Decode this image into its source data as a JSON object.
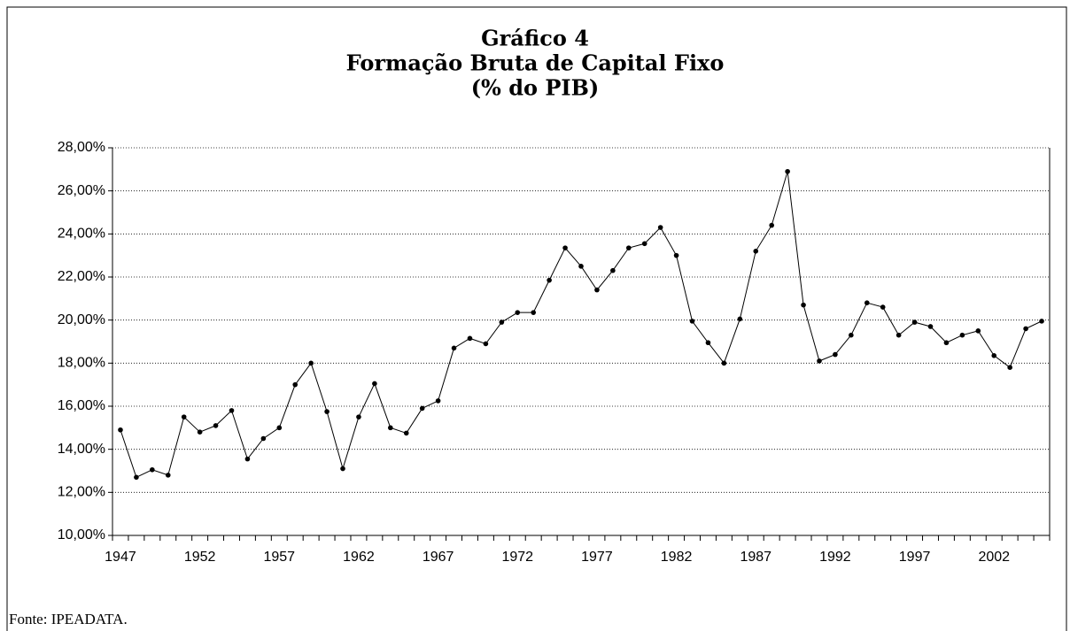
{
  "chart_data": {
    "type": "line",
    "title_lines": [
      "Gráfico 4",
      "Formação Bruta de Capital Fixo",
      "(% do PIB)"
    ],
    "source": "Fonte: IPEADATA.",
    "categories": [
      "1947",
      null,
      null,
      null,
      null,
      "1952",
      null,
      null,
      null,
      null,
      "1957",
      null,
      null,
      null,
      null,
      "1962",
      null,
      null,
      null,
      null,
      "1967",
      null,
      null,
      null,
      null,
      "1972",
      null,
      null,
      null,
      null,
      "1977",
      null,
      null,
      null,
      null,
      "1982",
      null,
      null,
      null,
      null,
      "1987",
      null,
      null,
      null,
      null,
      "1992",
      null,
      null,
      null,
      null,
      "1997",
      null,
      null,
      null,
      null,
      "2002",
      null,
      null,
      null
    ],
    "values": [
      14.9,
      12.7,
      13.05,
      12.8,
      15.5,
      14.8,
      15.1,
      15.8,
      13.55,
      14.5,
      15.0,
      17.0,
      18.0,
      15.75,
      13.1,
      15.5,
      17.05,
      15.0,
      14.75,
      15.9,
      16.25,
      18.7,
      19.15,
      18.9,
      19.9,
      20.35,
      20.35,
      21.85,
      23.35,
      22.5,
      21.4,
      22.3,
      23.35,
      23.55,
      24.3,
      23.0,
      19.95,
      18.95,
      18.0,
      20.05,
      23.2,
      24.4,
      26.9,
      20.7,
      18.1,
      18.4,
      19.3,
      20.8,
      20.6,
      19.3,
      19.9,
      19.7,
      18.95,
      19.3,
      19.5,
      18.35,
      17.8,
      19.6,
      19.95
    ],
    "color": "#000000",
    "ylim": [
      10,
      28
    ],
    "yticks": [
      {
        "value": 10,
        "label": "10,00%"
      },
      {
        "value": 12,
        "label": "12,00%"
      },
      {
        "value": 14,
        "label": "14,00%"
      },
      {
        "value": 16,
        "label": "16,00%"
      },
      {
        "value": 18,
        "label": "18,00%"
      },
      {
        "value": 20,
        "label": "20,00%"
      },
      {
        "value": 22,
        "label": "22,00%"
      },
      {
        "value": 24,
        "label": "24,00%"
      },
      {
        "value": 26,
        "label": "26,00%"
      },
      {
        "value": 28,
        "label": "28,00%"
      }
    ],
    "grid": true
  }
}
